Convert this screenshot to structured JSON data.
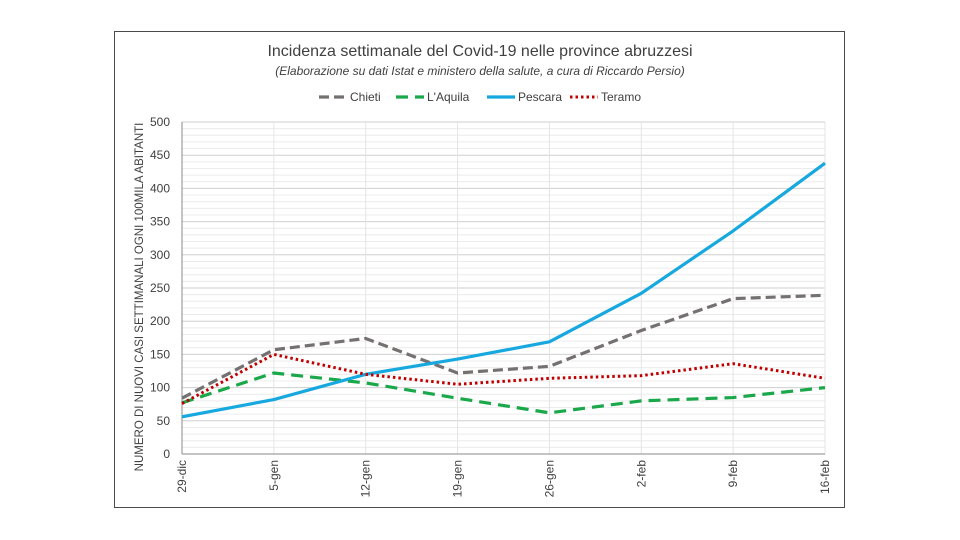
{
  "chart_data": {
    "type": "line",
    "title": "Incidenza settimanale del Covid-19 nelle province abruzzesi",
    "subtitle": "(Elaborazione su dati Istat e ministero della salute, a cura di Riccardo Persio)",
    "xlabel": "",
    "ylabel": "NUMERO DI NUOVI CASI SETTIMANALI OGNI 100MILA ABITANTI",
    "categories": [
      "29-dic",
      "5-gen",
      "12-gen",
      "19-gen",
      "26-gen",
      "2-feb",
      "9-feb",
      "16-feb"
    ],
    "ylim": [
      0,
      500
    ],
    "yticks": [
      0,
      50,
      100,
      150,
      200,
      250,
      300,
      350,
      400,
      450,
      500
    ],
    "grid": true,
    "legend": "top",
    "series": [
      {
        "name": "Chieti",
        "color": "#767171",
        "dash": "long-dash",
        "values": [
          84,
          157,
          174,
          122,
          132,
          186,
          234,
          239
        ]
      },
      {
        "name": "L'Aquila",
        "color": "#1aa84a",
        "dash": "dash",
        "values": [
          77,
          122,
          107,
          84,
          62,
          80,
          85,
          100
        ]
      },
      {
        "name": "Pescara",
        "color": "#18a8e0",
        "dash": "solid",
        "values": [
          56,
          82,
          120,
          143,
          169,
          242,
          336,
          438
        ]
      },
      {
        "name": "Teramo",
        "color": "#c00000",
        "dash": "dot",
        "values": [
          76,
          150,
          120,
          105,
          114,
          118,
          136,
          114
        ]
      }
    ]
  }
}
